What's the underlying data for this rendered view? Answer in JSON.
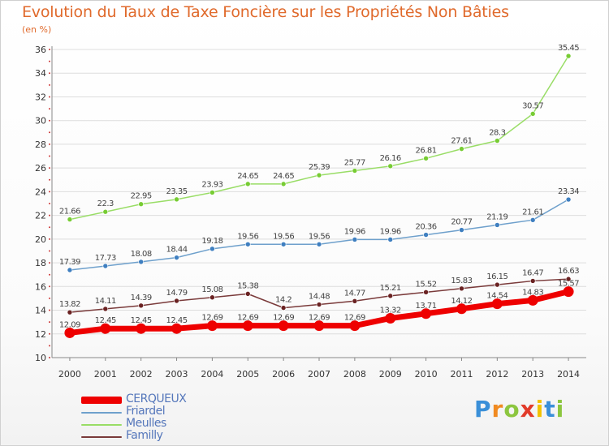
{
  "title": "Evolution du Taux de Taxe Foncière sur les Propriétés Non Bâties",
  "subtitle": "(en %)",
  "logo": {
    "letters": [
      "P",
      "r",
      "o",
      "x",
      "i",
      "t",
      "i"
    ],
    "colors": [
      "#3a8fd8",
      "#f08a20",
      "#8cc63f",
      "#e23b2a",
      "#f2c200",
      "#3a8fd8",
      "#8cc63f"
    ]
  },
  "chart_data": {
    "type": "line",
    "x": [
      "2000",
      "2001",
      "2002",
      "2003",
      "2004",
      "2005",
      "2006",
      "2007",
      "2008",
      "2009",
      "2010",
      "2011",
      "2012",
      "2013",
      "2014"
    ],
    "ylim": [
      10,
      36
    ],
    "yticks": [
      10,
      12,
      14,
      16,
      18,
      20,
      22,
      24,
      26,
      28,
      30,
      32,
      34,
      36
    ],
    "grid": true,
    "legend_position": "bottom-left",
    "series": [
      {
        "name": "CERQUEUX",
        "color": "#ee0000",
        "marker": "#ee0000",
        "width": 7,
        "values": [
          12.09,
          12.45,
          12.45,
          12.45,
          12.69,
          12.69,
          12.69,
          12.69,
          12.69,
          13.32,
          13.71,
          14.12,
          14.54,
          14.83,
          15.57
        ],
        "labels": [
          "12.09",
          "12.45",
          "12.45",
          "12.45",
          "12.69",
          "12.69",
          "12.69",
          "12.69",
          "12.69",
          "13.32",
          "13.71",
          "14.12",
          "14.54",
          "14.83",
          "15.57"
        ]
      },
      {
        "name": "Friardel",
        "color": "#6ea0cc",
        "marker": "#3f7fc0",
        "width": 1.5,
        "values": [
          17.39,
          17.73,
          18.08,
          18.44,
          19.18,
          19.56,
          19.56,
          19.56,
          19.96,
          19.96,
          20.36,
          20.77,
          21.19,
          21.61,
          23.34
        ],
        "labels": [
          "17.39",
          "17.73",
          "18.08",
          "18.44",
          "19.18",
          "19.56",
          "19.56",
          "19.56",
          "19.96",
          "19.96",
          "20.36",
          "20.77",
          "21.19",
          "21.61",
          "23.34"
        ]
      },
      {
        "name": "Meulles",
        "color": "#99dd66",
        "marker": "#77cc33",
        "width": 1.5,
        "values": [
          21.66,
          22.3,
          22.95,
          23.35,
          23.93,
          24.65,
          24.65,
          25.39,
          25.77,
          26.16,
          26.81,
          27.61,
          28.3,
          30.57,
          35.45
        ],
        "labels": [
          "21.66",
          "22.3",
          "22.95",
          "23.35",
          "23.93",
          "24.65",
          "24.65",
          "25.39",
          "25.77",
          "26.16",
          "26.81",
          "27.61",
          "28.3",
          "30.57",
          "35.45"
        ]
      },
      {
        "name": "Familly",
        "color": "#7a3a3a",
        "marker": "#6a2222",
        "width": 1.5,
        "values": [
          13.82,
          14.11,
          14.39,
          14.79,
          15.08,
          15.38,
          14.2,
          14.48,
          14.77,
          15.21,
          15.52,
          15.83,
          16.15,
          16.47,
          16.63
        ],
        "labels": [
          "13.82",
          "14.11",
          "14.39",
          "14.79",
          "15.08",
          "15.38",
          "14.2",
          "14.48",
          "14.77",
          "15.21",
          "15.52",
          "15.83",
          "16.15",
          "16.47",
          "16.63"
        ]
      }
    ]
  }
}
